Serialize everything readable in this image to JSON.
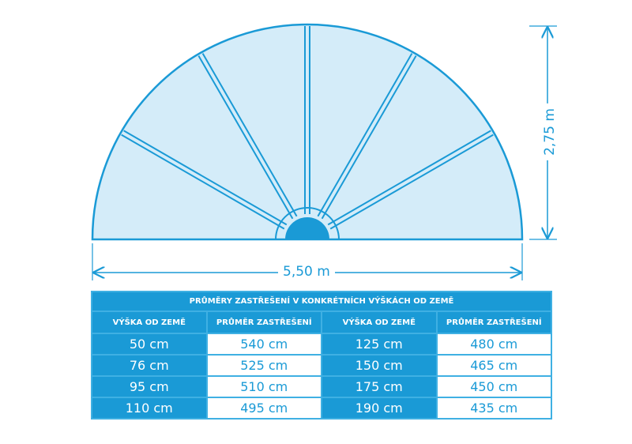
{
  "dimensions": {
    "width": "5,50 m",
    "height": "2,75 m"
  },
  "colors": {
    "accent": "#1a9ad6",
    "fill": "#d4ecf9"
  },
  "table": {
    "title": "PRŮMĚRY ZASTŘEŠENÍ V KONKRÉTNÍCH VÝŠKÁCH OD ZEMĚ",
    "headers": [
      "VÝŠKA OD ZEMĚ",
      "PRŮMĚR ZASTŘEŠENÍ",
      "VÝŠKA OD ZEMĚ",
      "PRŮMĚR ZASTŘEŠENÍ"
    ],
    "rows": [
      [
        "50 cm",
        "540 cm",
        "125 cm",
        "480 cm"
      ],
      [
        "76 cm",
        "525 cm",
        "150 cm",
        "465 cm"
      ],
      [
        "95 cm",
        "510 cm",
        "175 cm",
        "450 cm"
      ],
      [
        "110 cm",
        "495 cm",
        "190 cm",
        "435 cm"
      ]
    ]
  }
}
